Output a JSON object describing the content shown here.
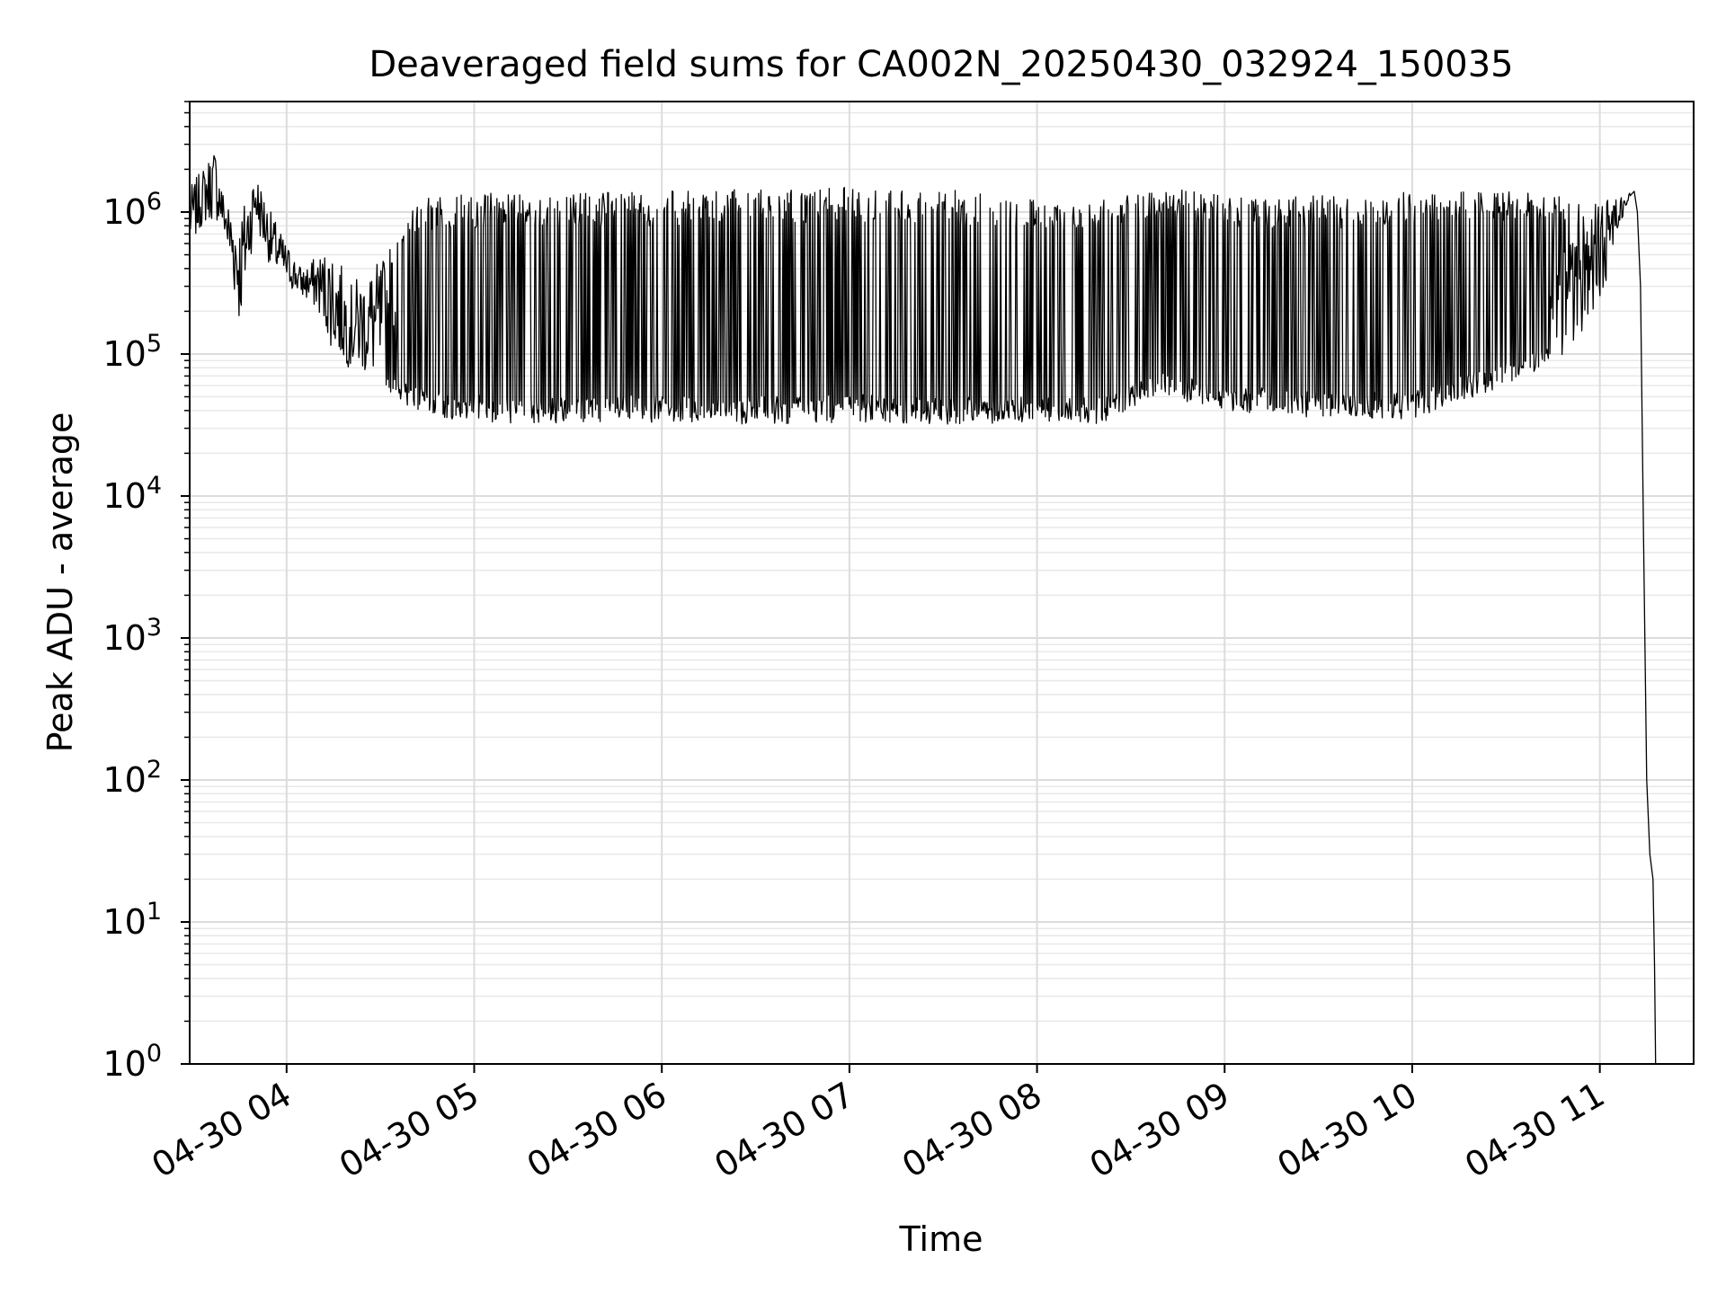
{
  "chart_data": {
    "type": "line",
    "title": "Deaveraged field sums for CA002N_20250430_032924_150035",
    "xlabel": "Time",
    "ylabel": "Peak ADU - average",
    "yscale": "log",
    "grid": true,
    "grid_minor": true,
    "legend": "none",
    "line_color": "#000000",
    "x_unit": "time of day on 2025-04-30",
    "xlim": [
      "03:29",
      "11:30"
    ],
    "ylim": [
      1,
      6000000
    ],
    "x_ticks": [
      "04:00",
      "05:00",
      "06:00",
      "07:00",
      "08:00",
      "09:00",
      "10:00",
      "11:00"
    ],
    "x_tick_labels": [
      "04-30 04",
      "04-30 05",
      "04-30 06",
      "04-30 07",
      "04-30 08",
      "04-30 09",
      "04-30 10",
      "04-30 11"
    ],
    "y_ticks": [
      1,
      10,
      100,
      1000,
      10000,
      100000,
      1000000
    ],
    "y_tick_labels": [
      {
        "base": "10",
        "exp": "0"
      },
      {
        "base": "10",
        "exp": "1"
      },
      {
        "base": "10",
        "exp": "2"
      },
      {
        "base": "10",
        "exp": "3"
      },
      {
        "base": "10",
        "exp": "4"
      },
      {
        "base": "10",
        "exp": "5"
      },
      {
        "base": "10",
        "exp": "6"
      }
    ],
    "series": [
      {
        "envelope_upper": {
          "x": [
            "03:29",
            "03:33",
            "03:37",
            "03:40",
            "03:45",
            "03:50",
            "03:55",
            "04:00",
            "04:05",
            "04:10",
            "04:15",
            "04:20",
            "04:25",
            "04:30",
            "04:40",
            "04:50",
            "05:00",
            "05:30",
            "06:00",
            "06:30",
            "07:00",
            "07:30",
            "08:00",
            "08:20",
            "08:40",
            "09:00",
            "09:30",
            "10:00",
            "10:30",
            "10:50",
            "11:00",
            "11:05",
            "11:08",
            "11:10"
          ],
          "y": [
            1500000,
            2000000,
            3000000,
            1300000,
            1000000,
            2000000,
            1000000,
            600000,
            400000,
            500000,
            600000,
            300000,
            400000,
            450000,
            1200000,
            1300000,
            1350000,
            1400000,
            1400000,
            1450000,
            1500000,
            1450000,
            1300000,
            1200000,
            1500000,
            1300000,
            1300000,
            1400000,
            1400000,
            1350000,
            1200000,
            1300000,
            1400000,
            1350000
          ]
        },
        "envelope_lower": {
          "x": [
            "03:29",
            "03:33",
            "03:37",
            "03:40",
            "03:45",
            "03:50",
            "03:55",
            "04:00",
            "04:05",
            "04:10",
            "04:15",
            "04:20",
            "04:25",
            "04:30",
            "04:40",
            "04:50",
            "05:00",
            "05:30",
            "06:00",
            "06:30",
            "07:00",
            "07:30",
            "08:00",
            "08:20",
            "08:40",
            "09:00",
            "09:30",
            "10:00",
            "10:30",
            "10:50",
            "11:00",
            "11:05",
            "11:08",
            "11:10"
          ],
          "y": [
            550000,
            800000,
            900000,
            700000,
            150000,
            800000,
            400000,
            300000,
            250000,
            200000,
            100000,
            80000,
            70000,
            60000,
            40000,
            35000,
            33000,
            32000,
            33000,
            32000,
            33000,
            32000,
            33000,
            32000,
            50000,
            40000,
            35000,
            35000,
            60000,
            100000,
            200000,
            700000,
            1000000,
            1300000
          ]
        },
        "tail": {
          "x": [
            "11:11",
            "11:12",
            "11:13",
            "11:14",
            "11:15",
            "11:16",
            "11:17",
            "11:17:30",
            "11:17:50"
          ],
          "y": [
            1400000,
            1000000,
            300000,
            5000,
            100,
            30,
            20,
            5,
            1
          ]
        }
      }
    ]
  }
}
